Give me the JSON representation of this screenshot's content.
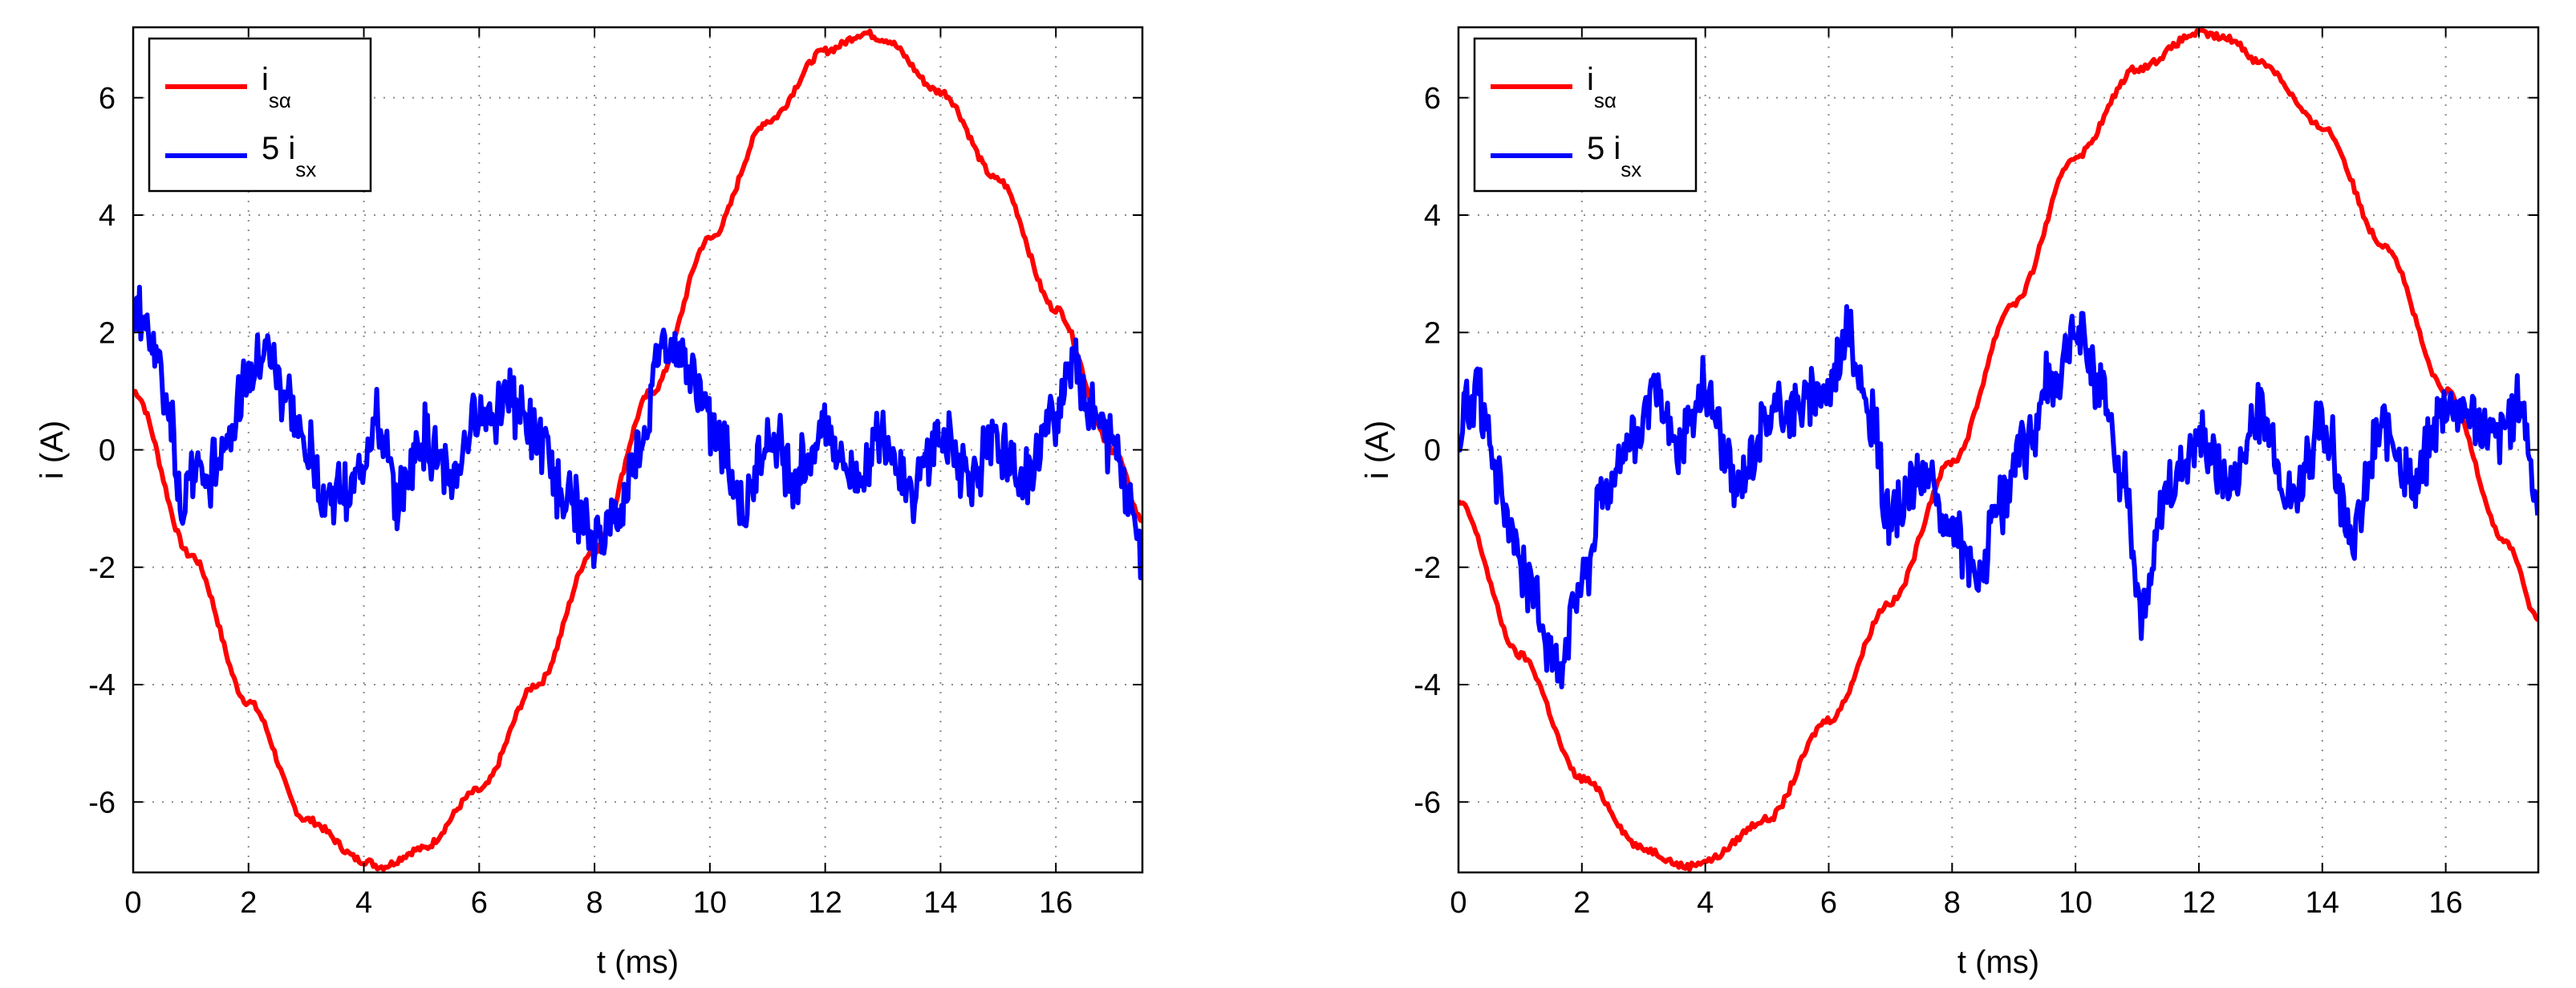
{
  "chart_data": [
    {
      "type": "line",
      "xlabel": "t (ms)",
      "ylabel": "i (A)",
      "xlim": [
        0,
        17.5
      ],
      "ylim": [
        -7.2,
        7.2
      ],
      "xticks": [
        0,
        2,
        4,
        6,
        8,
        10,
        12,
        14,
        16
      ],
      "yticks": [
        -6,
        -4,
        -2,
        0,
        2,
        4,
        6
      ],
      "xtick_labels": [
        "0",
        "2",
        "4",
        "6",
        "8",
        "10",
        "12",
        "14",
        "16"
      ],
      "ytick_labels": [
        "-6",
        "-4",
        "-2",
        "0",
        "2",
        "4",
        "6"
      ],
      "grid": true,
      "legend_position": "top-left",
      "series": [
        {
          "name": "i_sα",
          "label_main": "i",
          "label_sub": "sα",
          "color": "#ff0000",
          "x": [
            0,
            1,
            2,
            3,
            4,
            4.3,
            5,
            6,
            7,
            8,
            9,
            10,
            11,
            12,
            12.7,
            13,
            14,
            15,
            16,
            17,
            17.5
          ],
          "y": [
            1.0,
            -1.8,
            -4.3,
            -6.3,
            -7.0,
            -7.1,
            -6.8,
            -5.8,
            -4.0,
            -1.7,
            1.0,
            3.6,
            5.6,
            6.8,
            7.1,
            7.0,
            6.1,
            4.6,
            2.4,
            0.0,
            -1.2
          ]
        },
        {
          "name": "5 i_sx",
          "label_main": "5 i",
          "label_sub": "sx",
          "color": "#0000ff",
          "x": [
            0,
            0.3,
            0.6,
            0.9,
            1.0,
            1.3,
            1.6,
            2.0,
            2.3,
            2.6,
            3.0,
            3.4,
            3.8,
            4.2,
            4.6,
            5.0,
            5.5,
            6.0,
            6.5,
            7.0,
            7.5,
            8.0,
            8.4,
            8.8,
            9.2,
            9.5,
            9.8,
            10.2,
            10.6,
            11.0,
            11.5,
            12.0,
            12.5,
            13.0,
            13.5,
            14.0,
            14.5,
            15.0,
            15.5,
            16.0,
            16.3,
            16.6,
            17.0,
            17.3,
            17.5
          ],
          "y": [
            2.4,
            2.0,
            0.8,
            -1.2,
            -0.2,
            -0.6,
            0.2,
            1.2,
            1.7,
            1.0,
            0.0,
            -0.8,
            -0.6,
            0.4,
            -0.8,
            0.2,
            -0.5,
            0.6,
            0.9,
            0.2,
            -0.8,
            -1.5,
            -1.2,
            0.2,
            1.9,
            1.6,
            1.0,
            0.0,
            -1.0,
            0.2,
            -0.4,
            0.4,
            -0.5,
            0.2,
            -0.6,
            0.2,
            -0.4,
            0.0,
            -0.5,
            0.6,
            1.7,
            0.6,
            0.1,
            -0.8,
            -2.2
          ]
        }
      ]
    },
    {
      "type": "line",
      "xlabel": "t (ms)",
      "ylabel": "i (A)",
      "xlim": [
        0,
        17.5
      ],
      "ylim": [
        -7.2,
        7.2
      ],
      "xticks": [
        0,
        2,
        4,
        6,
        8,
        10,
        12,
        14,
        16
      ],
      "yticks": [
        -6,
        -4,
        -2,
        0,
        2,
        4,
        6
      ],
      "xtick_labels": [
        "0",
        "2",
        "4",
        "6",
        "8",
        "10",
        "12",
        "14",
        "16"
      ],
      "ytick_labels": [
        "-6",
        "-4",
        "-2",
        "0",
        "2",
        "4",
        "6"
      ],
      "grid": true,
      "legend_position": "top-left",
      "series": [
        {
          "name": "i_sα",
          "label_main": "i",
          "label_sub": "sα",
          "color": "#ff0000",
          "x": [
            0,
            1,
            2,
            3,
            3.7,
            4,
            5,
            6,
            7,
            8,
            9,
            10,
            11,
            12,
            12.5,
            13,
            14,
            15,
            16,
            17,
            17.5
          ],
          "y": [
            -0.9,
            -3.5,
            -5.6,
            -6.8,
            -7.1,
            -7.0,
            -6.3,
            -4.6,
            -2.6,
            -0.2,
            2.5,
            5.0,
            6.5,
            7.1,
            7.0,
            6.6,
            5.5,
            3.5,
            1.0,
            -1.6,
            -2.9
          ]
        },
        {
          "name": "5 i_sx",
          "label_main": "5 i",
          "label_sub": "sx",
          "color": "#0000ff",
          "x": [
            0,
            0.3,
            0.6,
            0.9,
            1.2,
            1.6,
            2.0,
            2.4,
            2.8,
            3.2,
            3.6,
            4.0,
            4.5,
            5.0,
            5.5,
            6.0,
            6.3,
            6.7,
            7.0,
            7.5,
            8.0,
            8.4,
            8.8,
            9.2,
            9.6,
            10.0,
            10.4,
            10.8,
            11.1,
            11.5,
            12.0,
            12.5,
            13.0,
            13.5,
            14.0,
            14.5,
            15.0,
            15.5,
            16.0,
            16.4,
            16.8,
            17.2,
            17.5
          ],
          "y": [
            0.4,
            1.0,
            -0.5,
            -1.5,
            -2.5,
            -3.6,
            -2.2,
            -0.6,
            0.2,
            0.8,
            0.0,
            1.0,
            -0.6,
            0.6,
            0.8,
            1.1,
            2.0,
            0.4,
            -1.2,
            -0.4,
            -1.4,
            -2.2,
            -0.9,
            0.1,
            1.2,
            2.0,
            1.2,
            -0.6,
            -2.8,
            -0.6,
            0.2,
            -0.6,
            0.6,
            -0.8,
            0.4,
            -1.4,
            0.4,
            -0.6,
            0.8,
            0.6,
            0.2,
            0.8,
            -0.8
          ]
        }
      ]
    }
  ]
}
